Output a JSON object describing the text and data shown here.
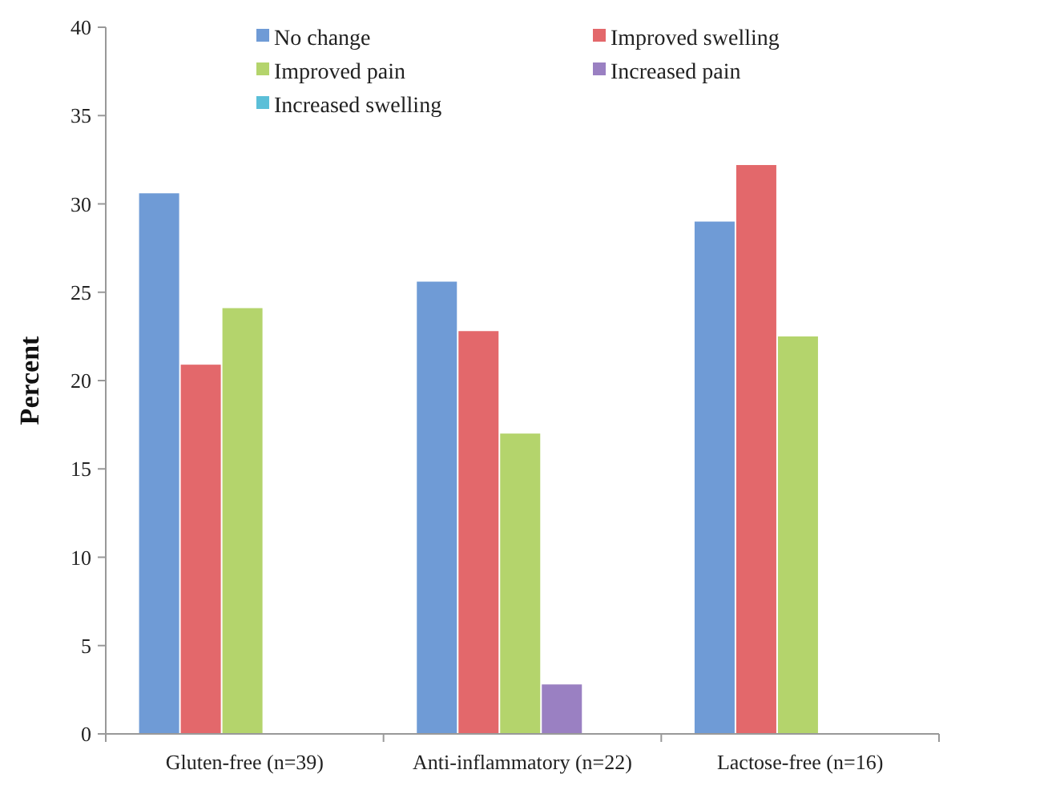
{
  "chart_data": {
    "type": "bar",
    "ylabel": "Percent",
    "categories": [
      "Gluten-free (n=39)",
      "Anti-inflammatory (n=22)",
      "Lactose-free (n=16)"
    ],
    "series": [
      {
        "name": "No change",
        "color": "#6f9bd6",
        "values": [
          30.6,
          25.6,
          29.0
        ]
      },
      {
        "name": "Improved swelling",
        "color": "#e3686b",
        "values": [
          20.9,
          22.8,
          32.2
        ]
      },
      {
        "name": "Improved pain",
        "color": "#b4d46c",
        "values": [
          24.1,
          17.0,
          22.5
        ]
      },
      {
        "name": "Increased pain",
        "color": "#9a80c2",
        "values": [
          0,
          2.8,
          0
        ]
      },
      {
        "name": "Increased swelling",
        "color": "#5bbfd8",
        "values": [
          0,
          0,
          0
        ]
      }
    ],
    "ylim": [
      0,
      40
    ],
    "yticks": [
      0,
      5,
      10,
      15,
      20,
      25,
      30,
      35,
      40
    ],
    "grid": false,
    "legend": "top"
  }
}
